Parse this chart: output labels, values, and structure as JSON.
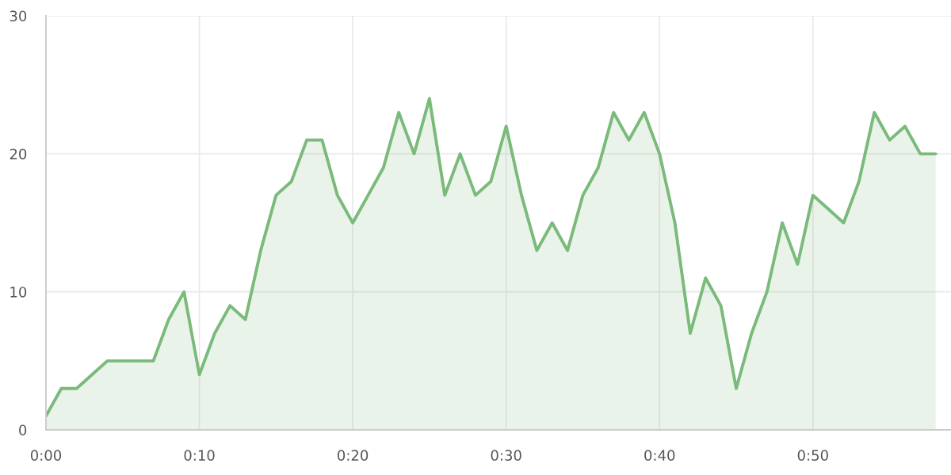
{
  "chart_data": {
    "type": "area",
    "categories": [
      "0:00",
      null,
      null,
      null,
      null,
      null,
      null,
      null,
      null,
      null,
      "0:10",
      null,
      null,
      null,
      null,
      null,
      null,
      null,
      null,
      null,
      "0:20",
      null,
      null,
      null,
      null,
      null,
      null,
      null,
      null,
      null,
      "0:30",
      null,
      null,
      null,
      null,
      null,
      null,
      null,
      null,
      null,
      "0:40",
      null,
      null,
      null,
      null,
      null,
      null,
      null,
      null,
      null,
      "0:50",
      null,
      null,
      null,
      null,
      null,
      null,
      null,
      null
    ],
    "series": [
      {
        "color": "#7aba7a",
        "values": [
          1,
          3,
          3,
          4,
          5,
          5,
          5,
          5,
          8,
          10,
          4,
          7,
          9,
          8,
          13,
          17,
          18,
          21,
          21,
          17,
          15,
          17,
          19,
          23,
          20,
          24,
          17,
          20,
          17,
          18,
          22,
          17,
          13,
          15,
          13,
          17,
          19,
          23,
          21,
          23,
          20,
          15,
          7,
          11,
          9,
          3,
          7,
          10,
          15,
          12,
          17,
          16,
          15,
          18,
          23,
          21,
          22,
          20,
          20
        ]
      }
    ],
    "ylim": [
      0,
      30
    ],
    "yticks": [
      0,
      10,
      20,
      30
    ],
    "grid": true
  }
}
